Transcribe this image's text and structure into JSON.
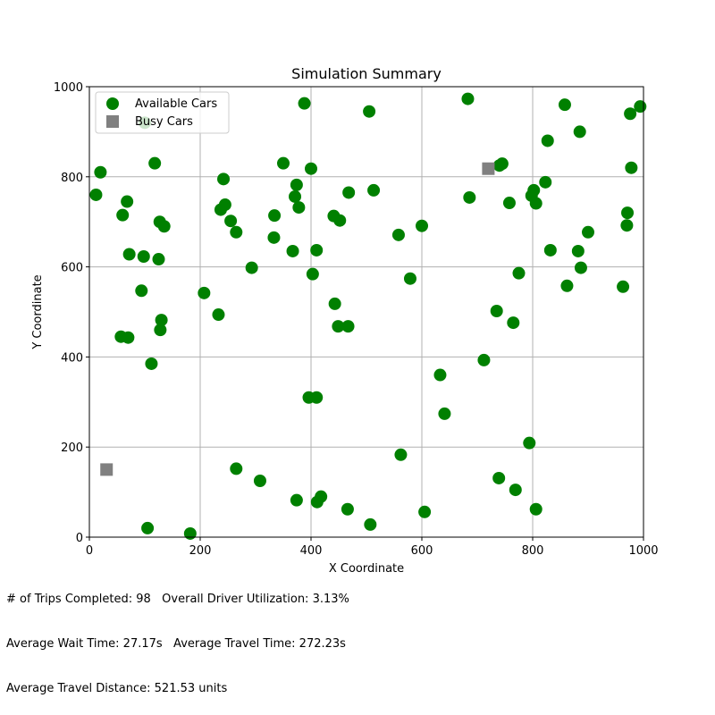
{
  "chart_data": {
    "type": "scatter",
    "title": "Simulation Summary",
    "xlabel": "X Coordinate",
    "ylabel": "Y Coordinate",
    "xlim": [
      0,
      1000
    ],
    "ylim": [
      0,
      1000
    ],
    "xticks": [
      0,
      200,
      400,
      600,
      800,
      1000
    ],
    "yticks": [
      0,
      200,
      400,
      600,
      800,
      1000
    ],
    "grid": true,
    "legend_position": "top-left",
    "series": [
      {
        "name": "Available Cars",
        "marker": "circle",
        "color": "#008000",
        "points": [
          [
            100,
            920
          ],
          [
            20,
            810
          ],
          [
            12,
            760
          ],
          [
            68,
            745
          ],
          [
            60,
            715
          ],
          [
            118,
            830
          ],
          [
            127,
            700
          ],
          [
            135,
            690
          ],
          [
            72,
            628
          ],
          [
            98,
            623
          ],
          [
            125,
            617
          ],
          [
            94,
            547
          ],
          [
            130,
            482
          ],
          [
            128,
            460
          ],
          [
            57,
            445
          ],
          [
            70,
            443
          ],
          [
            112,
            385
          ],
          [
            105,
            20
          ],
          [
            182,
            8
          ],
          [
            242,
            795
          ],
          [
            245,
            738
          ],
          [
            237,
            727
          ],
          [
            255,
            702
          ],
          [
            265,
            677
          ],
          [
            207,
            542
          ],
          [
            233,
            494
          ],
          [
            293,
            598
          ],
          [
            265,
            152
          ],
          [
            308,
            125
          ],
          [
            350,
            830
          ],
          [
            388,
            963
          ],
          [
            400,
            818
          ],
          [
            374,
            782
          ],
          [
            371,
            756
          ],
          [
            378,
            732
          ],
          [
            334,
            714
          ],
          [
            333,
            665
          ],
          [
            367,
            635
          ],
          [
            410,
            637
          ],
          [
            403,
            584
          ],
          [
            396,
            310
          ],
          [
            410,
            310
          ],
          [
            374,
            82
          ],
          [
            418,
            90
          ],
          [
            411,
            78
          ],
          [
            468,
            765
          ],
          [
            441,
            713
          ],
          [
            452,
            703
          ],
          [
            443,
            518
          ],
          [
            449,
            468
          ],
          [
            467,
            468
          ],
          [
            505,
            945
          ],
          [
            513,
            770
          ],
          [
            558,
            671
          ],
          [
            579,
            574
          ],
          [
            600,
            691
          ],
          [
            633,
            360
          ],
          [
            641,
            274
          ],
          [
            562,
            183
          ],
          [
            605,
            56
          ],
          [
            507,
            28
          ],
          [
            466,
            62
          ],
          [
            683,
            973
          ],
          [
            686,
            754
          ],
          [
            745,
            829
          ],
          [
            740,
            825
          ],
          [
            758,
            742
          ],
          [
            735,
            502
          ],
          [
            712,
            393
          ],
          [
            775,
            586
          ],
          [
            765,
            476
          ],
          [
            739,
            131
          ],
          [
            769,
            105
          ],
          [
            794,
            209
          ],
          [
            806,
            62
          ],
          [
            798,
            758
          ],
          [
            802,
            770
          ],
          [
            806,
            741
          ],
          [
            823,
            788
          ],
          [
            827,
            880
          ],
          [
            832,
            637
          ],
          [
            858,
            960
          ],
          [
            885,
            900
          ],
          [
            882,
            635
          ],
          [
            887,
            598
          ],
          [
            862,
            558
          ],
          [
            900,
            677
          ],
          [
            976,
            940
          ],
          [
            978,
            820
          ],
          [
            994,
            956
          ],
          [
            971,
            720
          ],
          [
            970,
            692
          ],
          [
            963,
            556
          ]
        ]
      },
      {
        "name": "Busy Cars",
        "marker": "square",
        "color": "#808080",
        "points": [
          [
            720,
            818
          ],
          [
            31,
            150
          ]
        ]
      }
    ]
  },
  "stats": {
    "line1": "# of Trips Completed: 98   Overall Driver Utilization: 3.13%",
    "line2": "Average Wait Time: 27.17s   Average Travel Time: 272.23s",
    "line3": "Average Travel Distance: 521.53 units"
  }
}
